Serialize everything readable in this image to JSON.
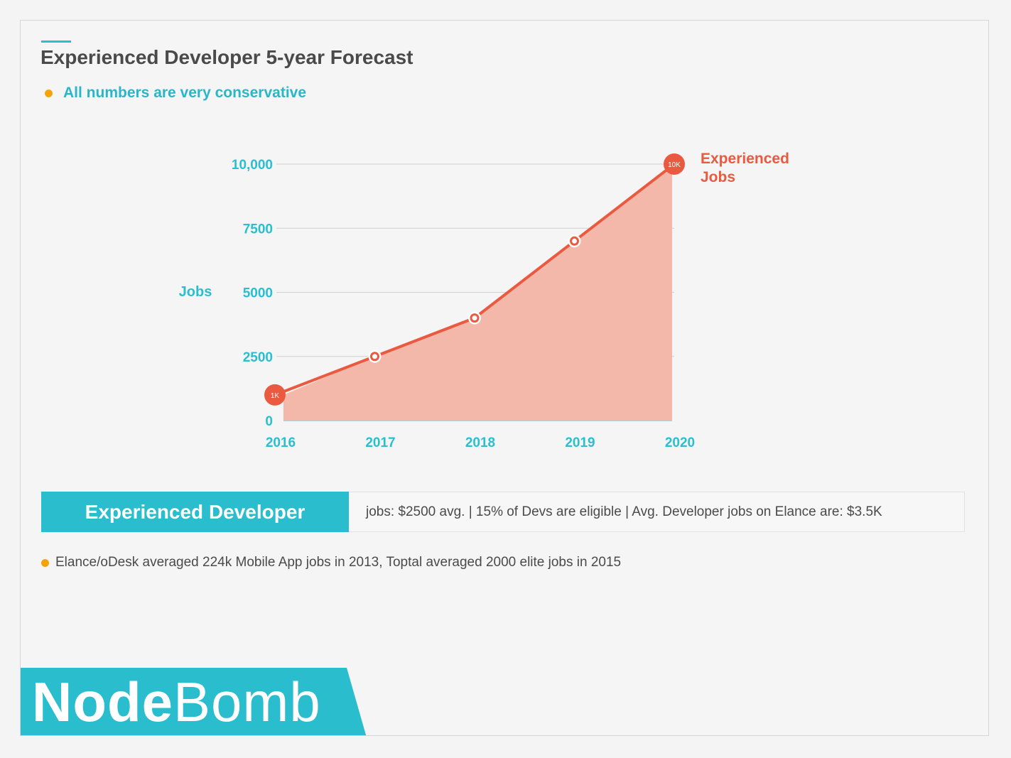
{
  "header": {
    "title": "Experienced Developer 5-year Forecast",
    "subtitle": "All numbers are very conservative"
  },
  "colors": {
    "accent": "#2abfcf",
    "series_line": "#ea5a40",
    "series_fill": "#f4b8ab",
    "bullet": "#f4a40a",
    "text": "#4a4a4a"
  },
  "chart_data": {
    "type": "area",
    "x": [
      "2016",
      "2017",
      "2018",
      "2019",
      "2020"
    ],
    "series": [
      {
        "name": "Experienced Jobs",
        "values": [
          1000,
          2500,
          4000,
          7000,
          10000
        ]
      }
    ],
    "ylabel": "Jobs",
    "xlabel": "",
    "ylim": [
      0,
      10000
    ],
    "yticks": [
      {
        "value": 0,
        "label": "0"
      },
      {
        "value": 2500,
        "label": "2500"
      },
      {
        "value": 5000,
        "label": "5000"
      },
      {
        "value": 7500,
        "label": "7500"
      },
      {
        "value": 10000,
        "label": "10,000"
      }
    ],
    "point_labels": {
      "first": "1K",
      "last": "10K"
    },
    "series_label_lines": [
      "Experienced",
      "Jobs"
    ],
    "grid": true
  },
  "info": {
    "label": "Experienced Developer",
    "text": "jobs: $2500 avg. | 15% of Devs are eligible | Avg. Developer jobs on Elance are: $3.5K"
  },
  "note": "Elance/oDesk averaged 224k Mobile App jobs in 2013, Toptal averaged 2000 elite jobs in 2015",
  "logo": {
    "bold": "Node",
    "light": "Bomb"
  }
}
